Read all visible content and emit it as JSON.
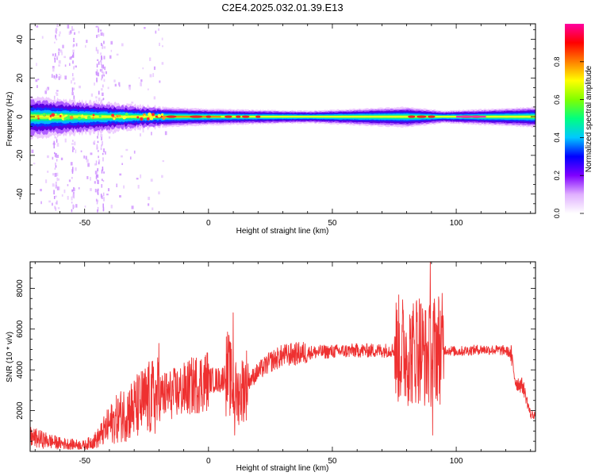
{
  "title": "C2E4.2025.032.01.39.E13",
  "chart_data": [
    {
      "type": "heatmap",
      "xlabel": "Height of straight line (km)",
      "ylabel": "Frequency (Hz)",
      "xlim": [
        -72,
        132
      ],
      "ylim": [
        -50,
        48
      ],
      "xticks": [
        -50,
        0,
        50,
        100
      ],
      "yticks": [
        -40,
        -20,
        0,
        20,
        40
      ],
      "colorbar": {
        "label": "Normalized spectral amplitude",
        "range": [
          0,
          1
        ],
        "ticks": [
          "0.0",
          "0.2",
          "0.4",
          "0.6",
          "0.8"
        ],
        "colors": [
          "#ffffff",
          "#e0b0ff",
          "#8000ff",
          "#0000ff",
          "#00c8ff",
          "#00ff80",
          "#80ff00",
          "#ffff00",
          "#ff8000",
          "#ff0000",
          "#ff00a0"
        ]
      },
      "ridge": {
        "freq_hz": 0,
        "bandwidth_hz": [
          [
            -72,
            10
          ],
          [
            -20,
            5
          ],
          [
            0,
            4
          ],
          [
            40,
            3
          ],
          [
            80,
            5
          ],
          [
            95,
            3
          ],
          [
            132,
            5
          ]
        ]
      },
      "noise_columns_km": [
        -62,
        -55,
        -45,
        -43
      ]
    },
    {
      "type": "line",
      "xlabel": "Height of straight line (km)",
      "ylabel": "SNR (10 * v/v)",
      "xlim": [
        -72,
        132
      ],
      "ylim": [
        0,
        9300
      ],
      "xticks": [
        -50,
        0,
        50,
        100
      ],
      "yticks": [
        2000,
        4000,
        6000,
        8000
      ],
      "color": "#ee3030",
      "envelope": {
        "x": [
          -72,
          -60,
          -50,
          -45,
          -40,
          -35,
          -30,
          -25,
          -20,
          -15,
          -10,
          -5,
          0,
          5,
          8,
          10,
          12,
          15,
          20,
          25,
          30,
          40,
          50,
          60,
          70,
          78,
          82,
          85,
          88,
          90,
          92,
          95,
          100,
          110,
          120,
          122,
          124,
          127,
          130,
          132
        ],
        "y": [
          700,
          400,
          300,
          600,
          1300,
          1800,
          2100,
          2500,
          2700,
          2800,
          3000,
          3300,
          3500,
          3500,
          3900,
          3000,
          2800,
          3300,
          3900,
          4400,
          4700,
          4850,
          4900,
          4950,
          4950,
          5000,
          4800,
          5200,
          4600,
          4800,
          5200,
          5000,
          4900,
          5000,
          4950,
          4800,
          3400,
          3200,
          1800,
          1800
        ]
      },
      "peaks": [
        {
          "x": 89.5,
          "y": 9300
        },
        {
          "x": 84,
          "y": 7400
        },
        {
          "x": 10,
          "y": 6800
        },
        {
          "x": -20,
          "y": 5300
        },
        {
          "x": 90.5,
          "y": 800
        },
        {
          "x": 10.5,
          "y": 800
        }
      ]
    }
  ]
}
